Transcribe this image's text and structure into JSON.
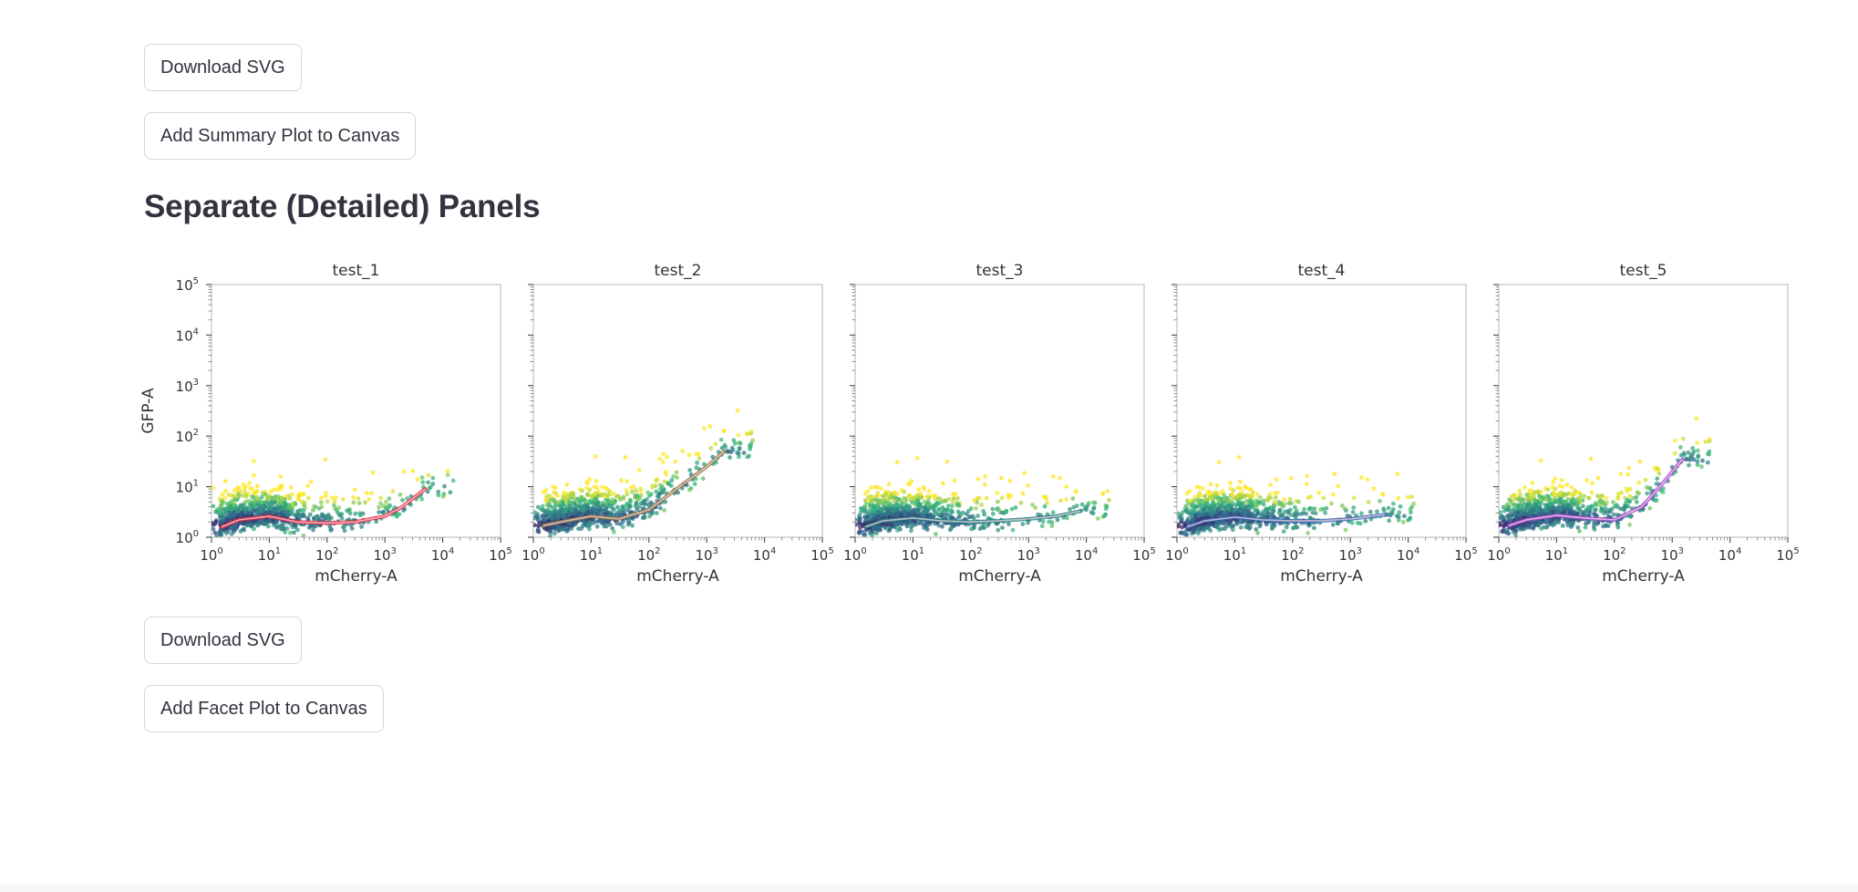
{
  "buttons": {
    "download_svg_top": "Download SVG",
    "add_summary": "Add Summary Plot to Canvas",
    "download_svg_bottom": "Download SVG",
    "add_facet": "Add Facet Plot to Canvas"
  },
  "section": {
    "title": "Separate (Detailed) Panels"
  },
  "chart_data": {
    "type": "scatter",
    "layout": "facet-1x5",
    "xlabel": "mCherry-A",
    "ylabel": "GFP-A",
    "xscale": "log",
    "yscale": "log",
    "xlim": [
      1,
      100000
    ],
    "ylim": [
      1,
      100000
    ],
    "xticks": [
      1,
      10,
      100,
      1000,
      10000,
      100000
    ],
    "yticks": [
      1,
      10,
      100,
      1000,
      10000,
      100000
    ],
    "tick_labels": [
      "10",
      "10",
      "10",
      "10",
      "10",
      "10"
    ],
    "tick_exponents": [
      "0",
      "1",
      "2",
      "3",
      "4",
      "5"
    ],
    "colormap": [
      "#440154",
      "#31688e",
      "#35b779",
      "#fde725"
    ],
    "panels": [
      {
        "title": "test_1",
        "trend_color": "#e8303a",
        "trend": {
          "x": [
            1.5,
            3,
            10,
            30,
            100,
            300,
            1000,
            2000,
            5000
          ],
          "y": [
            1.6,
            2.2,
            2.6,
            2.0,
            1.9,
            2.0,
            2.6,
            4.0,
            9.0
          ]
        }
      },
      {
        "title": "test_2",
        "trend_color": "#8a7d3a",
        "trend": {
          "x": [
            1.5,
            3,
            10,
            30,
            100,
            300,
            1000,
            2000
          ],
          "y": [
            1.7,
            2.0,
            2.6,
            2.3,
            3.5,
            9.0,
            25.0,
            50.0
          ]
        }
      },
      {
        "title": "test_3",
        "trend_color": "#1a8a7a",
        "trend": {
          "x": [
            1.5,
            3,
            10,
            30,
            100,
            300,
            1000,
            3000,
            8000
          ],
          "y": [
            1.6,
            2.1,
            2.4,
            2.1,
            2.0,
            2.1,
            2.3,
            2.6,
            3.3
          ]
        }
      },
      {
        "title": "test_4",
        "trend_color": "#2a6fb0",
        "trend": {
          "x": [
            1.5,
            3,
            10,
            30,
            100,
            300,
            1000,
            4000
          ],
          "y": [
            1.6,
            2.1,
            2.5,
            2.2,
            2.1,
            2.1,
            2.3,
            2.8
          ]
        }
      },
      {
        "title": "test_5",
        "trend_color": "#a24fd6",
        "trend": {
          "x": [
            1.5,
            3,
            10,
            30,
            100,
            300,
            700,
            1500
          ],
          "y": [
            1.7,
            2.2,
            2.7,
            2.4,
            2.2,
            4.0,
            12.0,
            35.0
          ]
        }
      }
    ]
  }
}
